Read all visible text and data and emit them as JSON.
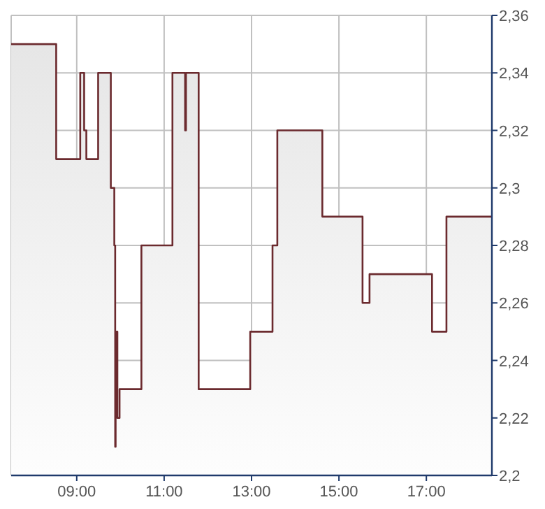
{
  "chart_data": {
    "type": "area",
    "x": [
      7.5,
      8.53,
      8.53,
      9.08,
      9.08,
      9.17,
      9.17,
      9.22,
      9.22,
      9.49,
      9.49,
      9.78,
      9.78,
      9.86,
      9.86,
      9.88,
      9.88,
      9.89,
      9.89,
      9.93,
      9.93,
      9.98,
      9.98,
      10.48,
      10.48,
      11.19,
      11.19,
      11.48,
      11.48,
      11.5,
      11.5,
      11.79,
      11.79,
      12.97,
      12.97,
      13.48,
      13.48,
      13.59,
      13.59,
      14.62,
      14.62,
      15.54,
      15.54,
      15.7,
      15.7,
      17.13,
      17.13,
      17.46,
      17.46,
      18.5
    ],
    "series": [
      {
        "color": "#6b2a2e",
        "values": [
          2.35,
          2.35,
          2.31,
          2.31,
          2.34,
          2.34,
          2.32,
          2.32,
          2.31,
          2.31,
          2.34,
          2.34,
          2.3,
          2.3,
          2.28,
          2.28,
          2.21,
          2.21,
          2.25,
          2.25,
          2.22,
          2.22,
          2.23,
          2.23,
          2.28,
          2.28,
          2.34,
          2.34,
          2.32,
          2.32,
          2.34,
          2.34,
          2.23,
          2.23,
          2.25,
          2.25,
          2.28,
          2.28,
          2.32,
          2.32,
          2.29,
          2.29,
          2.26,
          2.26,
          2.27,
          2.27,
          2.25,
          2.25,
          2.29,
          2.29
        ]
      }
    ],
    "xlim": [
      7.5,
      18.5
    ],
    "xticks": [
      {
        "value": 9,
        "label": "09:00"
      },
      {
        "value": 11,
        "label": "11:00"
      },
      {
        "value": 13,
        "label": "13:00"
      },
      {
        "value": 15,
        "label": "15:00"
      },
      {
        "value": 17,
        "label": "17:00"
      }
    ],
    "ylim": [
      2.2,
      2.36
    ],
    "yticks": [
      {
        "value": 2.2,
        "label": "2,2"
      },
      {
        "value": 2.22,
        "label": "2,22"
      },
      {
        "value": 2.24,
        "label": "2,24"
      },
      {
        "value": 2.26,
        "label": "2,26"
      },
      {
        "value": 2.28,
        "label": "2,28"
      },
      {
        "value": 2.3,
        "label": "2,3"
      },
      {
        "value": 2.32,
        "label": "2,32"
      },
      {
        "value": 2.34,
        "label": "2,34"
      },
      {
        "value": 2.36,
        "label": "2,36"
      }
    ],
    "grid": true
  }
}
